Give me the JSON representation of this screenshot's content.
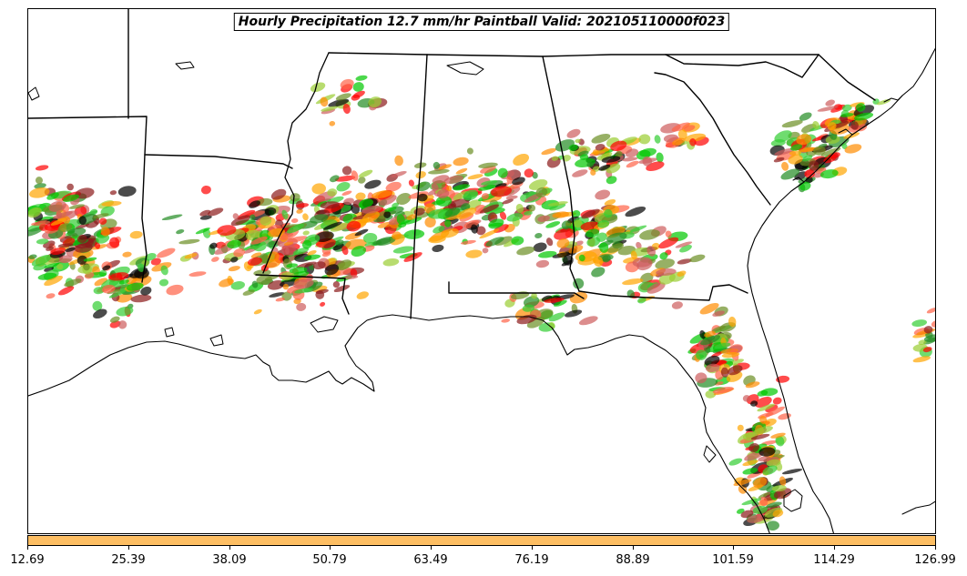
{
  "title": "Hourly Precipitation 12.7 mm/hr Paintball Valid: 202105110000f023",
  "colorbar": {
    "fill_color": "#fdbe63",
    "ticks": [
      "12.69",
      "25.39",
      "38.09",
      "50.79",
      "63.49",
      "76.19",
      "88.89",
      "101.59",
      "114.29",
      "126.99"
    ]
  },
  "member_colors": [
    "#ff0000",
    "#ff8c00",
    "#00c800",
    "#8b1a1a",
    "#6b8e23",
    "#228b22",
    "#ffa500",
    "#000000",
    "#9acd32",
    "#32cd32",
    "#cd5c5c",
    "#ff6347"
  ]
}
